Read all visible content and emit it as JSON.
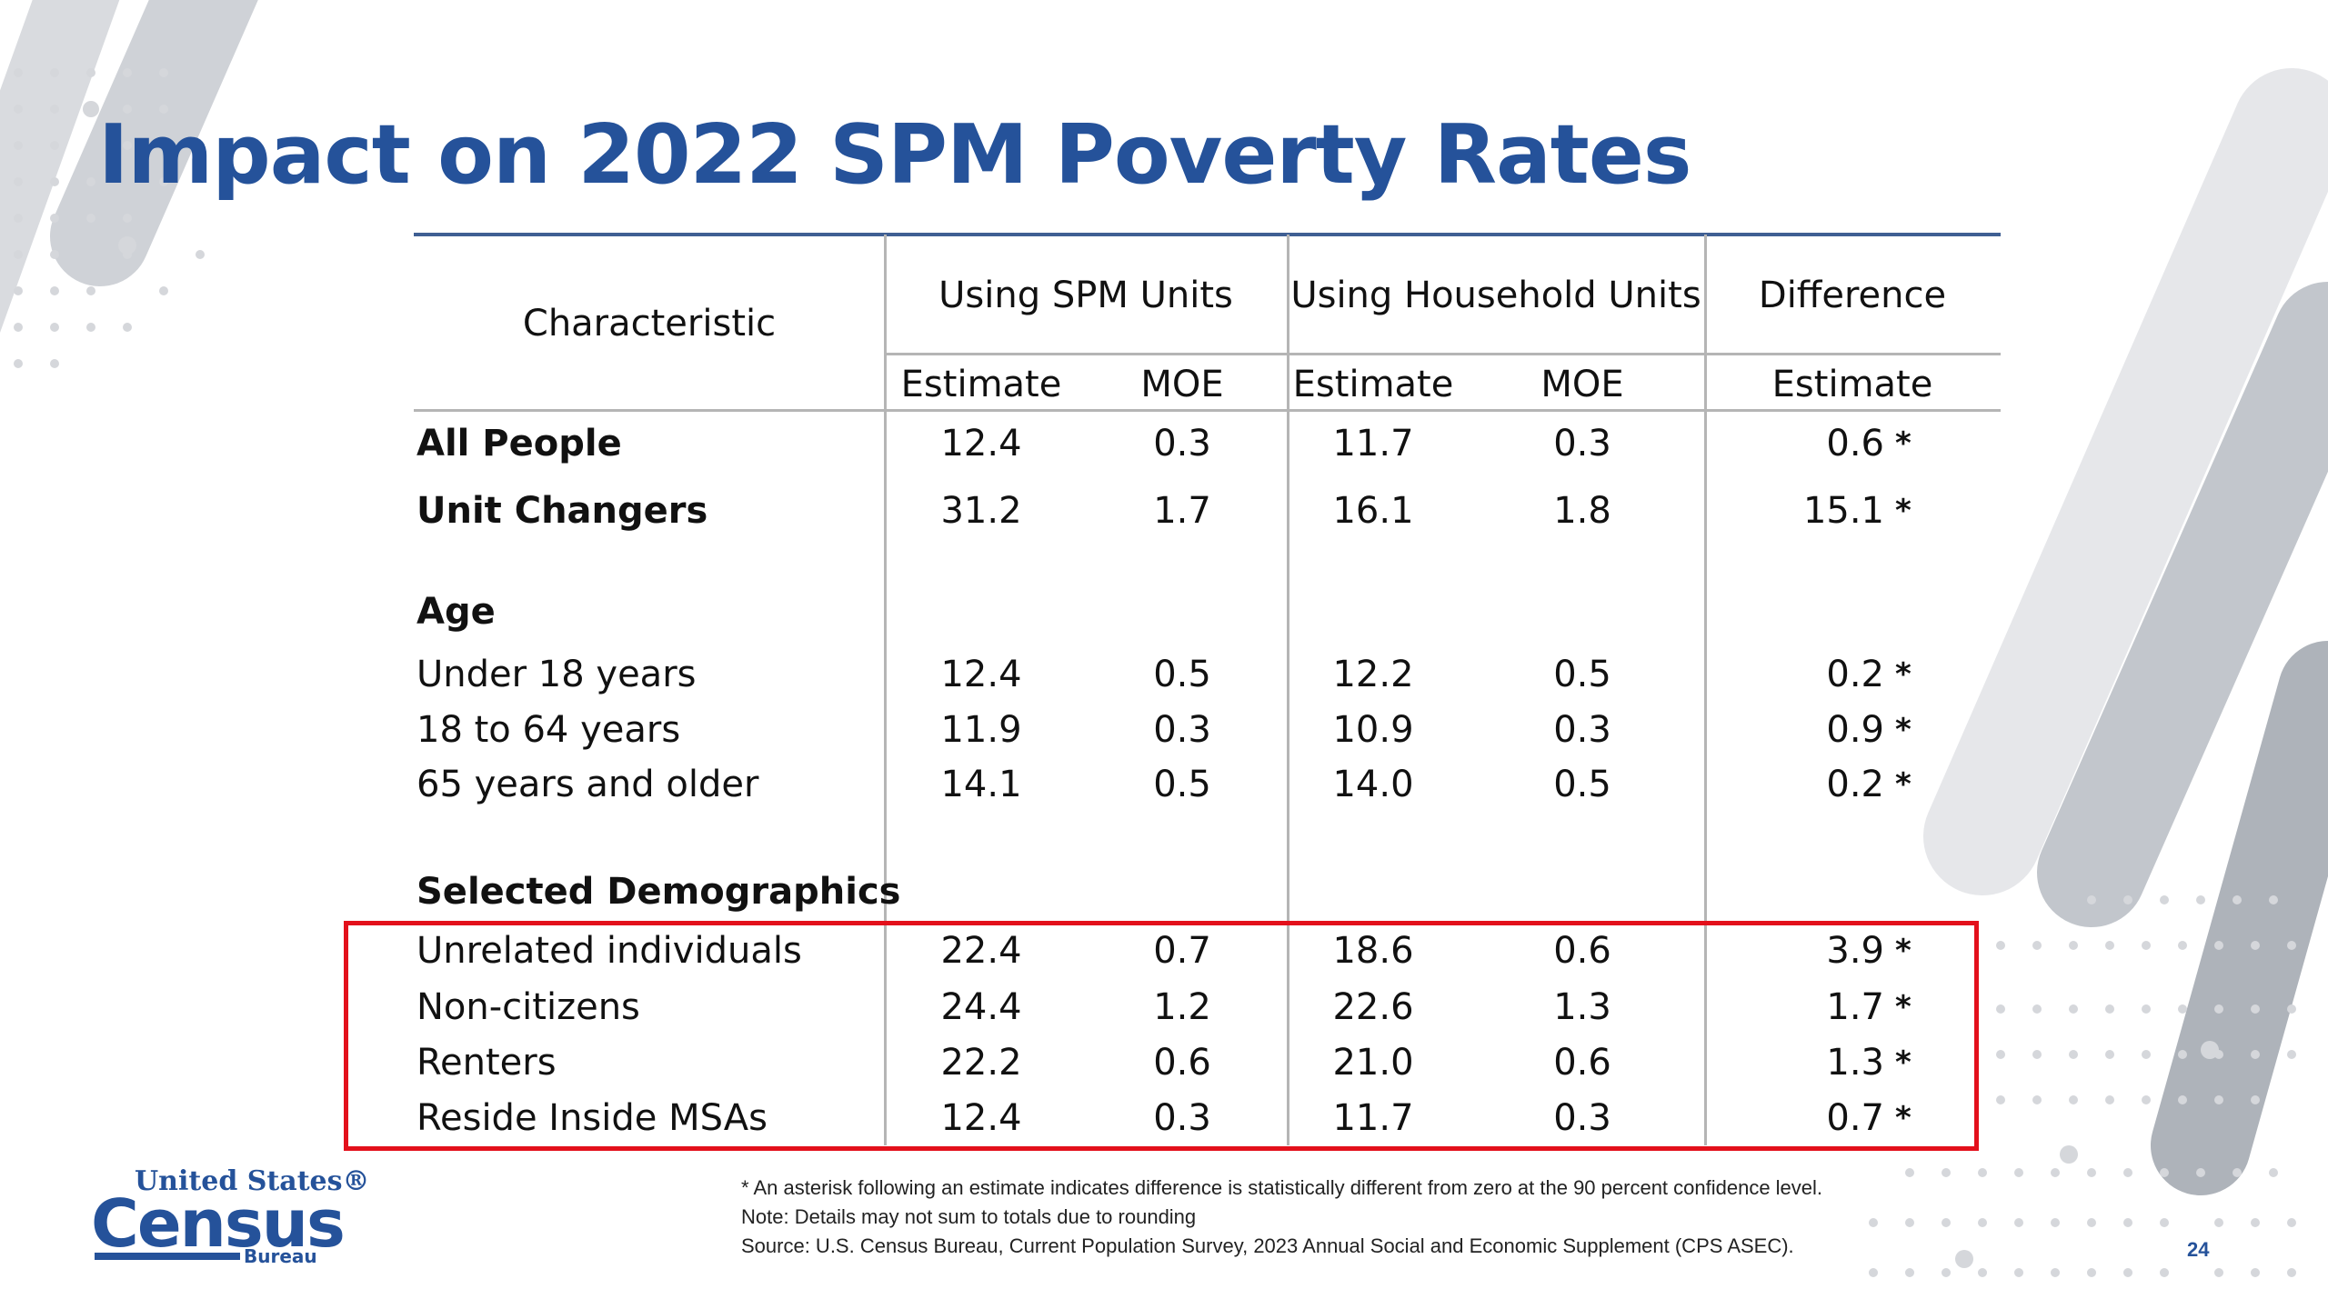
{
  "title": "Impact on 2022 SPM Poverty Rates",
  "colors": {
    "title": "#25529a",
    "highlight_border": "#e3101b",
    "rule": "#b5b5b5"
  },
  "table": {
    "char_header": "Characteristic",
    "group_headers": [
      "Using SPM Units",
      "Using Household Units",
      "Difference"
    ],
    "sub_headers": [
      "Estimate",
      "MOE",
      "Estimate",
      "MOE",
      "Estimate"
    ],
    "sections": [
      "Age",
      "Selected Demographics"
    ],
    "rows": [
      {
        "label": "All People",
        "spm_est": "12.4",
        "spm_moe": "0.3",
        "hh_est": "11.7",
        "hh_moe": "0.3",
        "diff": "0.6",
        "sig": "*"
      },
      {
        "label": "Unit Changers",
        "spm_est": "31.2",
        "spm_moe": "1.7",
        "hh_est": "16.1",
        "hh_moe": "1.8",
        "diff": "15.1",
        "sig": "*"
      },
      {
        "label": "Under 18 years",
        "spm_est": "12.4",
        "spm_moe": "0.5",
        "hh_est": "12.2",
        "hh_moe": "0.5",
        "diff": "0.2",
        "sig": "*"
      },
      {
        "label": "18 to 64 years",
        "spm_est": "11.9",
        "spm_moe": "0.3",
        "hh_est": "10.9",
        "hh_moe": "0.3",
        "diff": "0.9",
        "sig": "*"
      },
      {
        "label": "65 years and older",
        "spm_est": "14.1",
        "spm_moe": "0.5",
        "hh_est": "14.0",
        "hh_moe": "0.5",
        "diff": "0.2",
        "sig": "*"
      },
      {
        "label": "Unrelated individuals",
        "spm_est": "22.4",
        "spm_moe": "0.7",
        "hh_est": "18.6",
        "hh_moe": "0.6",
        "diff": "3.9",
        "sig": "*"
      },
      {
        "label": "Non-citizens",
        "spm_est": "24.4",
        "spm_moe": "1.2",
        "hh_est": "22.6",
        "hh_moe": "1.3",
        "diff": "1.7",
        "sig": "*"
      },
      {
        "label": "Renters",
        "spm_est": "22.2",
        "spm_moe": "0.6",
        "hh_est": "21.0",
        "hh_moe": "0.6",
        "diff": "1.3",
        "sig": "*"
      },
      {
        "label": "Reside Inside MSAs",
        "spm_est": "12.4",
        "spm_moe": "0.3",
        "hh_est": "11.7",
        "hh_moe": "0.3",
        "diff": "0.7",
        "sig": "*"
      }
    ]
  },
  "footnotes": [
    "* An asterisk following an estimate indicates difference is statistically different from zero at the 90 percent confidence level.",
    "Note: Details may not sum to totals due to rounding",
    "Source: U.S. Census Bureau, Current Population Survey, 2023 Annual Social and Economic Supplement (CPS ASEC)."
  ],
  "logo": {
    "line1": "United States®",
    "line2": "Census",
    "line3": "Bureau"
  },
  "page_number": "24"
}
